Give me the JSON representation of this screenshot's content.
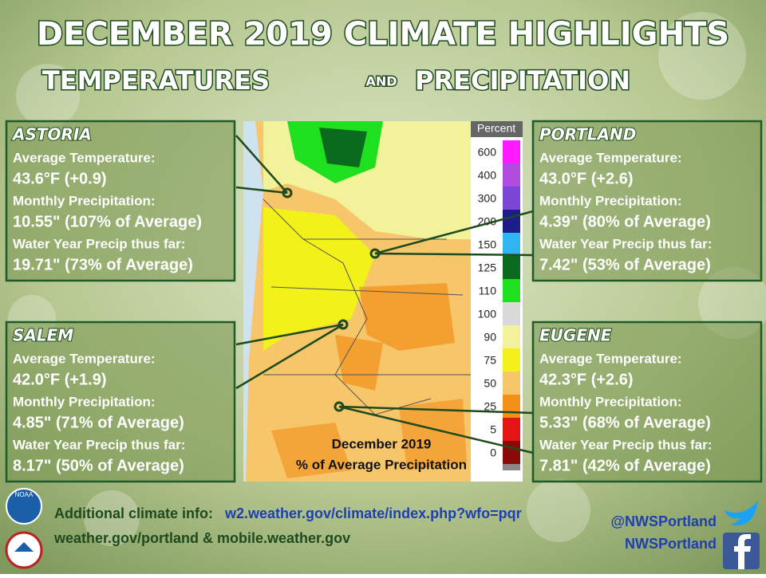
{
  "header": {
    "title": "DECEMBER 2019 CLIMATE HIGHLIGHTS",
    "subtitle_left": "TEMPERATURES",
    "subtitle_mid": "AND",
    "subtitle_right": "PRECIPITATION"
  },
  "stations": [
    {
      "name": "ASTORIA",
      "temp_label": "Average Temperature:",
      "temp": "43.6°F (+0.9)",
      "precip_label": "Monthly Precipitation:",
      "precip": "10.55\" (107% of Average)",
      "wy_label": "Water Year Precip thus far:",
      "wy": "19.71\" (73% of Average)"
    },
    {
      "name": "PORTLAND",
      "temp_label": "Average Temperature:",
      "temp": "43.0°F (+2.6)",
      "precip_label": "Monthly Precipitation:",
      "precip": "4.39\" (80% of Average)",
      "wy_label": "Water Year Precip thus far:",
      "wy": "7.42\" (53% of Average)"
    },
    {
      "name": "SALEM",
      "temp_label": "Average Temperature:",
      "temp": "42.0°F (+1.9)",
      "precip_label": "Monthly Precipitation:",
      "precip": "4.85\" (71% of Average)",
      "wy_label": "Water Year Precip thus far:",
      "wy": "8.17\" (50% of Average)"
    },
    {
      "name": "EUGENE",
      "temp_label": "Average Temperature:",
      "temp": "42.3°F (+2.6)",
      "precip_label": "Monthly Precipitation:",
      "precip": "5.33\" (68% of Average)",
      "wy_label": "Water Year Precip thus far:",
      "wy": "7.81\" (42% of Average)"
    }
  ],
  "map": {
    "caption_line1": "December 2019",
    "caption_line2": "% of Average Precipitation",
    "legend_title": "Percent",
    "legend": [
      {
        "label": "600",
        "color": "#ff1aff"
      },
      {
        "label": "400",
        "color": "#b14be0"
      },
      {
        "label": "300",
        "color": "#7b45d6"
      },
      {
        "label": "200",
        "color": "#1d1d8a"
      },
      {
        "label": "150",
        "color": "#2fb6f2"
      },
      {
        "label": "125",
        "color": "#0a6a1e"
      },
      {
        "label": "110",
        "color": "#1ee01e"
      },
      {
        "label": "100",
        "color": "#d9d9d9"
      },
      {
        "label": "90",
        "color": "#f2f29a"
      },
      {
        "label": "75",
        "color": "#f2f21a"
      },
      {
        "label": "50",
        "color": "#f7c56a"
      },
      {
        "label": "25",
        "color": "#f2901a"
      },
      {
        "label": "5",
        "color": "#e51414"
      },
      {
        "label": "0",
        "color": "#8a0a0a"
      }
    ]
  },
  "footer": {
    "info_label": "Additional climate info:",
    "info_link": "w2.weather.gov/climate/index.php?wfo=pqr",
    "line2": "weather.gov/portland & mobile.weather.gov",
    "twitter": "@NWSPortland",
    "facebook": "NWSPortland",
    "noaa": "NOAA"
  }
}
